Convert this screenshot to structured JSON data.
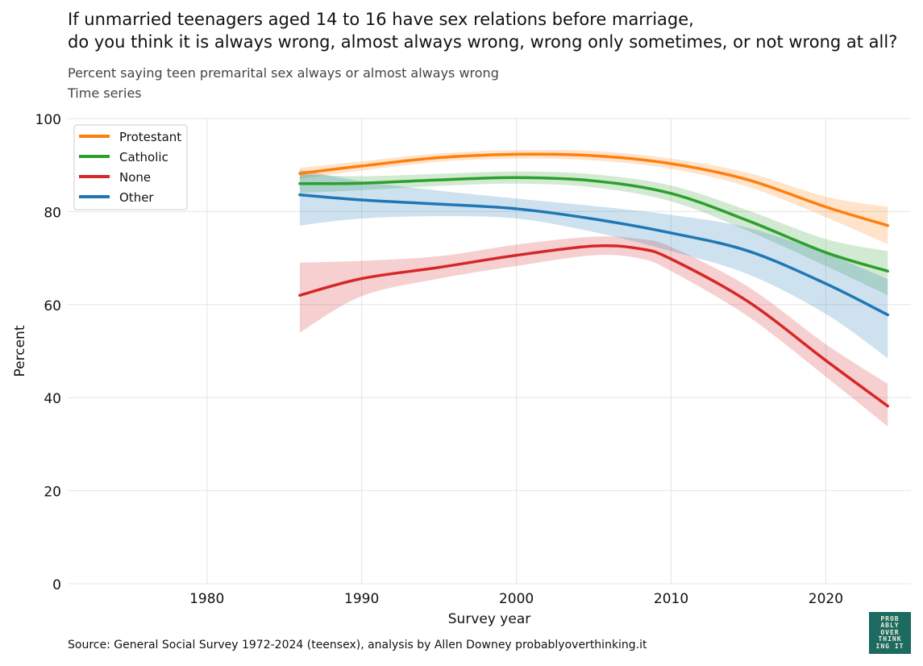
{
  "title_lines": [
    "If unmarried teenagers aged 14 to 16 have sex relations before marriage,",
    "do you think it is always wrong, almost always wrong, wrong only sometimes, or not wrong at all?"
  ],
  "subtitle_lines": [
    "Percent saying teen premarital sex always or almost always wrong",
    "Time series"
  ],
  "source": "Source: General Social Survey 1972-2024 (teensex), analysis by Allen Downey probablyoverthinking.it",
  "logo_text": [
    "PROB",
    "ABLY",
    "OVER",
    "THINK",
    "ING IT"
  ],
  "chart_data": {
    "type": "line",
    "xlabel": "Survey year",
    "ylabel": "Percent",
    "xlim": [
      1971,
      2025.5
    ],
    "ylim": [
      0,
      100
    ],
    "xticks": [
      1980,
      1990,
      2000,
      2010,
      2020
    ],
    "yticks": [
      0,
      20,
      40,
      60,
      80,
      100
    ],
    "grid": true,
    "legend_position": "top-left",
    "series": [
      {
        "name": "Protestant",
        "color": "#ff7f0e",
        "x": [
          1986,
          1990,
          1995,
          2000,
          2005,
          2010,
          2015,
          2020,
          2024
        ],
        "y": [
          88.2,
          89.8,
          91.6,
          92.3,
          92.0,
          90.3,
          86.8,
          81.0,
          77.0
        ],
        "lower": [
          87.0,
          88.8,
          90.7,
          91.4,
          91.0,
          89.2,
          85.3,
          78.8,
          73.0
        ],
        "upper": [
          89.4,
          90.8,
          92.5,
          93.2,
          93.0,
          91.4,
          88.3,
          83.2,
          81.0
        ]
      },
      {
        "name": "Catholic",
        "color": "#2ca02c",
        "x": [
          1986,
          1990,
          1995,
          2000,
          2005,
          2010,
          2015,
          2020,
          2024
        ],
        "y": [
          86.0,
          86.1,
          86.8,
          87.3,
          86.6,
          83.9,
          78.0,
          71.2,
          67.2
        ],
        "lower": [
          84.0,
          84.6,
          85.5,
          86.0,
          85.2,
          82.2,
          75.8,
          68.3,
          62.0
        ],
        "upper": [
          88.0,
          87.6,
          88.1,
          88.6,
          88.0,
          85.6,
          80.2,
          74.1,
          71.5
        ]
      },
      {
        "name": "None",
        "color": "#d62728",
        "x": [
          1986,
          1990,
          1995,
          2000,
          2005,
          2008,
          2010,
          2015,
          2020,
          2024
        ],
        "y": [
          62.0,
          65.6,
          68.0,
          70.6,
          72.6,
          72.0,
          69.8,
          60.6,
          48.0,
          38.2
        ],
        "lower": [
          54.0,
          61.8,
          65.6,
          68.3,
          70.6,
          69.9,
          67.2,
          57.4,
          44.5,
          33.8
        ],
        "upper": [
          69.0,
          69.4,
          70.4,
          72.9,
          74.6,
          74.1,
          72.4,
          63.8,
          51.5,
          43.0
        ]
      },
      {
        "name": "Other",
        "color": "#1f77b4",
        "x": [
          1986,
          1990,
          1995,
          2000,
          2005,
          2010,
          2015,
          2020,
          2024
        ],
        "y": [
          83.6,
          82.5,
          81.6,
          80.6,
          78.4,
          75.4,
          71.5,
          64.5,
          57.8
        ],
        "lower": [
          77.0,
          78.5,
          79.0,
          78.5,
          75.6,
          71.5,
          66.5,
          58.0,
          48.5
        ],
        "upper": [
          89.0,
          86.5,
          84.5,
          82.8,
          81.2,
          79.3,
          76.5,
          71.0,
          65.5
        ]
      }
    ]
  }
}
